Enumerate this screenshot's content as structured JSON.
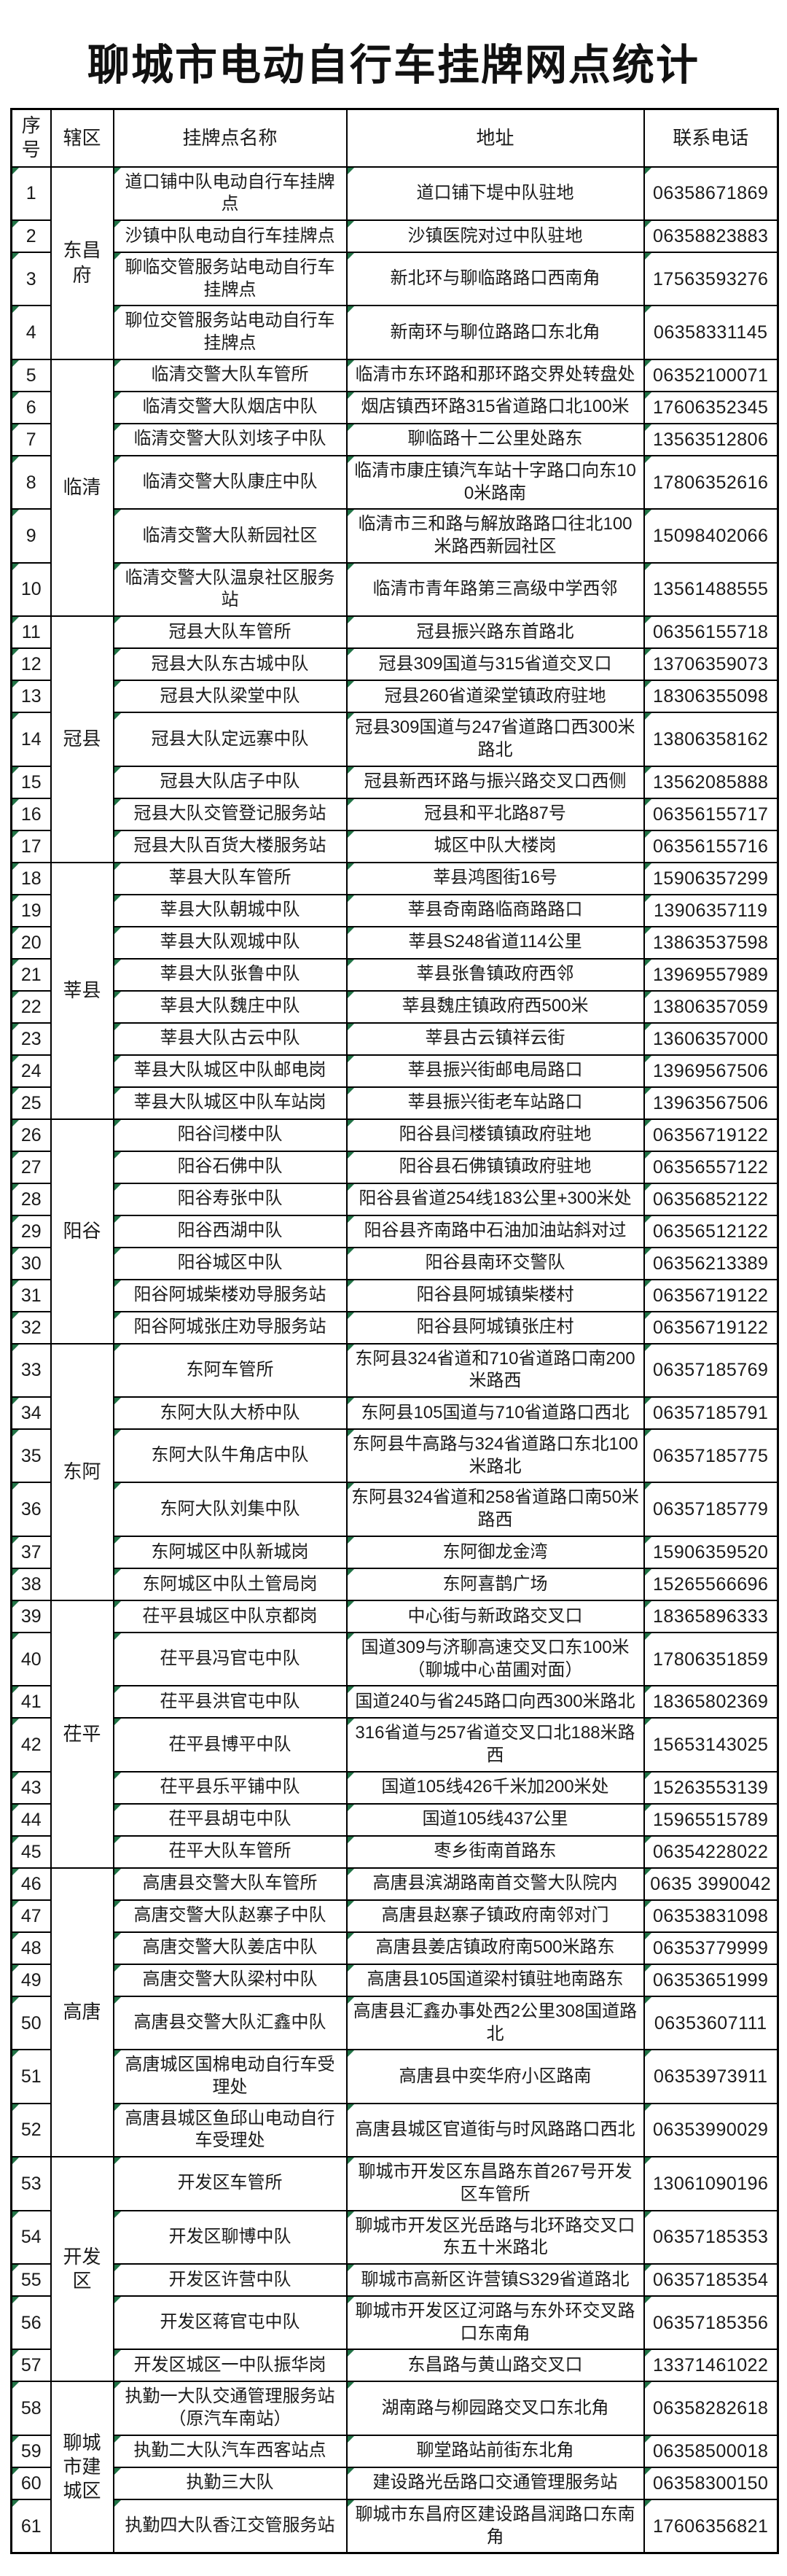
{
  "title": "聊城市电动自行车挂牌网点统计",
  "colors": {
    "marker_green": "#217346",
    "border": "#000000",
    "card_bg": "#ffffff"
  },
  "table": {
    "headers": [
      "序号",
      "辖区",
      "挂牌点名称",
      "地址",
      "联系电话"
    ],
    "rows": [
      {
        "no": "1",
        "district": "东昌府",
        "name": "道口铺中队电动自行车挂牌点",
        "address": "道口铺下堤中队驻地",
        "phone": "06358671869"
      },
      {
        "no": "2",
        "district": "东昌府",
        "name": "沙镇中队电动自行车挂牌点",
        "address": "沙镇医院对过中队驻地",
        "phone": "06358823883"
      },
      {
        "no": "3",
        "district": "东昌府",
        "name": "聊临交管服务站电动自行车挂牌点",
        "address": "新北环与聊临路路口西南角",
        "phone": "17563593276"
      },
      {
        "no": "4",
        "district": "东昌府",
        "name": "聊位交管服务站电动自行车挂牌点",
        "address": "新南环与聊位路路口东北角",
        "phone": "06358331145"
      },
      {
        "no": "5",
        "district": "临清",
        "name": "临清交警大队车管所",
        "address": "临清市东环路和那环路交界处转盘处",
        "phone": "06352100071"
      },
      {
        "no": "6",
        "district": "临清",
        "name": "临清交警大队烟店中队",
        "address": "烟店镇西环路315省道路口北100米",
        "phone": "17606352345"
      },
      {
        "no": "7",
        "district": "临清",
        "name": "临清交警大队刘垓子中队",
        "address": "聊临路十二公里处路东",
        "phone": "13563512806"
      },
      {
        "no": "8",
        "district": "临清",
        "name": "临清交警大队康庄中队",
        "address": "临清市康庄镇汽车站十字路口向东100米路南",
        "phone": "17806352616"
      },
      {
        "no": "9",
        "district": "临清",
        "name": "临清交警大队新园社区",
        "address": "临清市三和路与解放路路口往北100米路西新园社区",
        "phone": "15098402066"
      },
      {
        "no": "10",
        "district": "临清",
        "name": "临清交警大队温泉社区服务站",
        "address": "临清市青年路第三高级中学西邻",
        "phone": "13561488555"
      },
      {
        "no": "11",
        "district": "冠县",
        "name": "冠县大队车管所",
        "address": "冠县振兴路东首路北",
        "phone": "06356155718"
      },
      {
        "no": "12",
        "district": "冠县",
        "name": "冠县大队东古城中队",
        "address": "冠县309国道与315省道交叉口",
        "phone": "13706359073"
      },
      {
        "no": "13",
        "district": "冠县",
        "name": "冠县大队梁堂中队",
        "address": "冠县260省道梁堂镇政府驻地",
        "phone": "18306355098"
      },
      {
        "no": "14",
        "district": "冠县",
        "name": "冠县大队定远寨中队",
        "address": "冠县309国道与247省道路口西300米路北",
        "phone": "13806358162"
      },
      {
        "no": "15",
        "district": "冠县",
        "name": "冠县大队店子中队",
        "address": "冠县新西环路与振兴路交叉口西侧",
        "phone": "13562085888"
      },
      {
        "no": "16",
        "district": "冠县",
        "name": "冠县大队交管登记服务站",
        "address": "冠县和平北路87号",
        "phone": "06356155717"
      },
      {
        "no": "17",
        "district": "冠县",
        "name": "冠县大队百货大楼服务站",
        "address": "城区中队大楼岗",
        "phone": "06356155716"
      },
      {
        "no": "18",
        "district": "莘县",
        "name": "莘县大队车管所",
        "address": "莘县鸿图街16号",
        "phone": "15906357299"
      },
      {
        "no": "19",
        "district": "莘县",
        "name": "莘县大队朝城中队",
        "address": "莘县奇南路临商路路口",
        "phone": "13906357119"
      },
      {
        "no": "20",
        "district": "莘县",
        "name": "莘县大队观城中队",
        "address": "莘县S248省道114公里",
        "phone": "13863537598"
      },
      {
        "no": "21",
        "district": "莘县",
        "name": "莘县大队张鲁中队",
        "address": "莘县张鲁镇政府西邻",
        "phone": "13969557989"
      },
      {
        "no": "22",
        "district": "莘县",
        "name": "莘县大队魏庄中队",
        "address": "莘县魏庄镇政府西500米",
        "phone": "13806357059"
      },
      {
        "no": "23",
        "district": "莘县",
        "name": "莘县大队古云中队",
        "address": "莘县古云镇祥云街",
        "phone": "13606357000"
      },
      {
        "no": "24",
        "district": "莘县",
        "name": "莘县大队城区中队邮电岗",
        "address": "莘县振兴街邮电局路口",
        "phone": "13969567506"
      },
      {
        "no": "25",
        "district": "莘县",
        "name": "莘县大队城区中队车站岗",
        "address": "莘县振兴街老车站路口",
        "phone": "13963567506"
      },
      {
        "no": "26",
        "district": "阳谷",
        "name": "阳谷闫楼中队",
        "address": "阳谷县闫楼镇镇政府驻地",
        "phone": "06356719122"
      },
      {
        "no": "27",
        "district": "阳谷",
        "name": "阳谷石佛中队",
        "address": "阳谷县石佛镇镇政府驻地",
        "phone": "06356557122"
      },
      {
        "no": "28",
        "district": "阳谷",
        "name": "阳谷寿张中队",
        "address": "阳谷县省道254线183公里+300米处",
        "phone": "06356852122"
      },
      {
        "no": "29",
        "district": "阳谷",
        "name": "阳谷西湖中队",
        "address": "阳谷县齐南路中石油加油站斜对过",
        "phone": "06356512122"
      },
      {
        "no": "30",
        "district": "阳谷",
        "name": "阳谷城区中队",
        "address": "阳谷县南环交警队",
        "phone": "06356213389"
      },
      {
        "no": "31",
        "district": "阳谷",
        "name": "阳谷阿城柴楼劝导服务站",
        "address": "阳谷县阿城镇柴楼村",
        "phone": "06356719122"
      },
      {
        "no": "32",
        "district": "阳谷",
        "name": "阳谷阿城张庄劝导服务站",
        "address": "阳谷县阿城镇张庄村",
        "phone": "06356719122"
      },
      {
        "no": "33",
        "district": "东阿",
        "name": "东阿车管所",
        "address": "东阿县324省道和710省道路口南200米路西",
        "phone": "06357185769"
      },
      {
        "no": "34",
        "district": "东阿",
        "name": "东阿大队大桥中队",
        "address": "东阿县105国道与710省道路口西北",
        "phone": "06357185791"
      },
      {
        "no": "35",
        "district": "东阿",
        "name": "东阿大队牛角店中队",
        "address": "东阿县牛高路与324省道路口东北100米路北",
        "phone": "06357185775"
      },
      {
        "no": "36",
        "district": "东阿",
        "name": "东阿大队刘集中队",
        "address": "东阿县324省道和258省道路口南50米路西",
        "phone": "06357185779"
      },
      {
        "no": "37",
        "district": "东阿",
        "name": "东阿城区中队新城岗",
        "address": "东阿御龙金湾",
        "phone": "15906359520"
      },
      {
        "no": "38",
        "district": "东阿",
        "name": "东阿城区中队土管局岗",
        "address": "东阿喜鹊广场",
        "phone": "15265566696"
      },
      {
        "no": "39",
        "district": "茌平",
        "name": "茌平县城区中队京都岗",
        "address": "中心街与新政路交叉口",
        "phone": "18365896333"
      },
      {
        "no": "40",
        "district": "茌平",
        "name": "茌平县冯官屯中队",
        "address": "国道309与济聊高速交叉口东100米（聊城中心苗圃对面）",
        "phone": "17806351859"
      },
      {
        "no": "41",
        "district": "茌平",
        "name": "茌平县洪官屯中队",
        "address": "国道240与省245路口向西300米路北",
        "phone": "18365802369"
      },
      {
        "no": "42",
        "district": "茌平",
        "name": "茌平县博平中队",
        "address": "316省道与257省道交叉口北188米路西",
        "phone": "15653143025"
      },
      {
        "no": "43",
        "district": "茌平",
        "name": "茌平县乐平铺中队",
        "address": "国道105线426千米加200米处",
        "phone": "15263553139"
      },
      {
        "no": "44",
        "district": "茌平",
        "name": "茌平县胡屯中队",
        "address": "国道105线437公里",
        "phone": "15965515789"
      },
      {
        "no": "45",
        "district": "茌平",
        "name": "茌平大队车管所",
        "address": "枣乡街南首路东",
        "phone": "06354228022"
      },
      {
        "no": "46",
        "district": "高唐",
        "name": "高唐县交警大队车管所",
        "address": "高唐县滨湖路南首交警大队院内",
        "phone": "0635 3990042"
      },
      {
        "no": "47",
        "district": "高唐",
        "name": "高唐交警大队赵寨子中队",
        "address": "高唐县赵寨子镇政府南邻对门",
        "phone": "06353831098"
      },
      {
        "no": "48",
        "district": "高唐",
        "name": "高唐交警大队姜店中队",
        "address": "高唐县姜店镇政府南500米路东",
        "phone": "06353779999"
      },
      {
        "no": "49",
        "district": "高唐",
        "name": "高唐交警大队梁村中队",
        "address": "高唐县105国道梁村镇驻地南路东",
        "phone": "06353651999"
      },
      {
        "no": "50",
        "district": "高唐",
        "name": "高唐县交警大队汇鑫中队",
        "address": "高唐县汇鑫办事处西2公里308国道路北",
        "phone": "06353607111"
      },
      {
        "no": "51",
        "district": "高唐",
        "name": "高唐城区国棉电动自行车受理处",
        "address": "高唐县中奕华府小区路南",
        "phone": "06353973911"
      },
      {
        "no": "52",
        "district": "高唐",
        "name": "高唐县城区鱼邱山电动自行车受理处",
        "address": "高唐县城区官道街与时风路路口西北",
        "phone": "06353990029"
      },
      {
        "no": "53",
        "district": "开发区",
        "name": "开发区车管所",
        "address": "聊城市开发区东昌路东首267号开发区车管所",
        "phone": "13061090196"
      },
      {
        "no": "54",
        "district": "开发区",
        "name": "开发区聊博中队",
        "address": "聊城市开发区光岳路与北环路交叉口东五十米路北",
        "phone": "06357185353"
      },
      {
        "no": "55",
        "district": "开发区",
        "name": "开发区许营中队",
        "address": "聊城市高新区许营镇S329省道路北",
        "phone": "06357185354"
      },
      {
        "no": "56",
        "district": "开发区",
        "name": "开发区蒋官屯中队",
        "address": "聊城市开发区辽河路与东外环交叉路口东南角",
        "phone": "06357185356"
      },
      {
        "no": "57",
        "district": "开发区",
        "name": "开发区城区一中队振华岗",
        "address": "东昌路与黄山路交叉口",
        "phone": "13371461022"
      },
      {
        "no": "58",
        "district": "聊城市建城区",
        "name": "执勤一大队交通管理服务站（原汽车南站）",
        "address": "湖南路与柳园路交叉口东北角",
        "phone": "06358282618"
      },
      {
        "no": "59",
        "district": "聊城市建城区",
        "name": "执勤二大队汽车西客站点",
        "address": "聊堂路站前街东北角",
        "phone": "06358500018"
      },
      {
        "no": "60",
        "district": "聊城市建城区",
        "name": "执勤三大队",
        "address": "建设路光岳路口交通管理服务站",
        "phone": "06358300150"
      },
      {
        "no": "61",
        "district": "聊城市建城区",
        "name": "执勤四大队香江交管服务站",
        "address": "聊城市东昌府区建设路昌润路口东南角",
        "phone": "17606356821"
      }
    ]
  }
}
